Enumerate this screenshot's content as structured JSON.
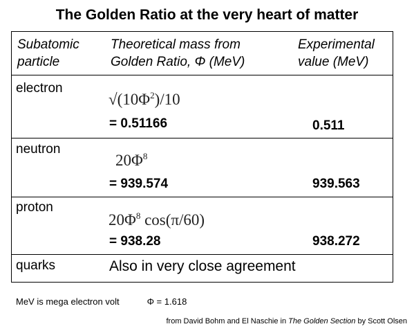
{
  "title": "The Golden Ratio at the very heart of matter",
  "table": {
    "headers": {
      "particle": [
        "Subatomic",
        "particle"
      ],
      "theoretical": [
        "Theoretical mass from",
        "Golden Ratio, Φ (MeV)"
      ],
      "experimental": [
        "Experimental",
        "value (MeV)"
      ]
    },
    "rows": [
      {
        "particle": "electron",
        "formula_pre": "√(10Φ",
        "formula_sup": "2",
        "formula_post": ")/10",
        "theoretical": "= 0.51166",
        "experimental": "0.511"
      },
      {
        "particle": "neutron",
        "formula_pre": "20Φ",
        "formula_sup": "8",
        "formula_post": "",
        "theoretical": "= 939.574",
        "experimental": "939.563"
      },
      {
        "particle": "proton",
        "formula_pre": "20Φ",
        "formula_sup": "8",
        "formula_post": " cos(π/60)",
        "theoretical": "= 938.28",
        "experimental": "938.272"
      }
    ],
    "quarks": {
      "particle": "quarks",
      "note": "Also in very close agreement"
    }
  },
  "footnote": {
    "mev": "MeV is mega electron volt",
    "phi": "Φ = 1.618"
  },
  "source": {
    "prefix": "from David Bohm and El Naschie in ",
    "book": "The Golden Section",
    "suffix": " by Scott Olsen"
  }
}
